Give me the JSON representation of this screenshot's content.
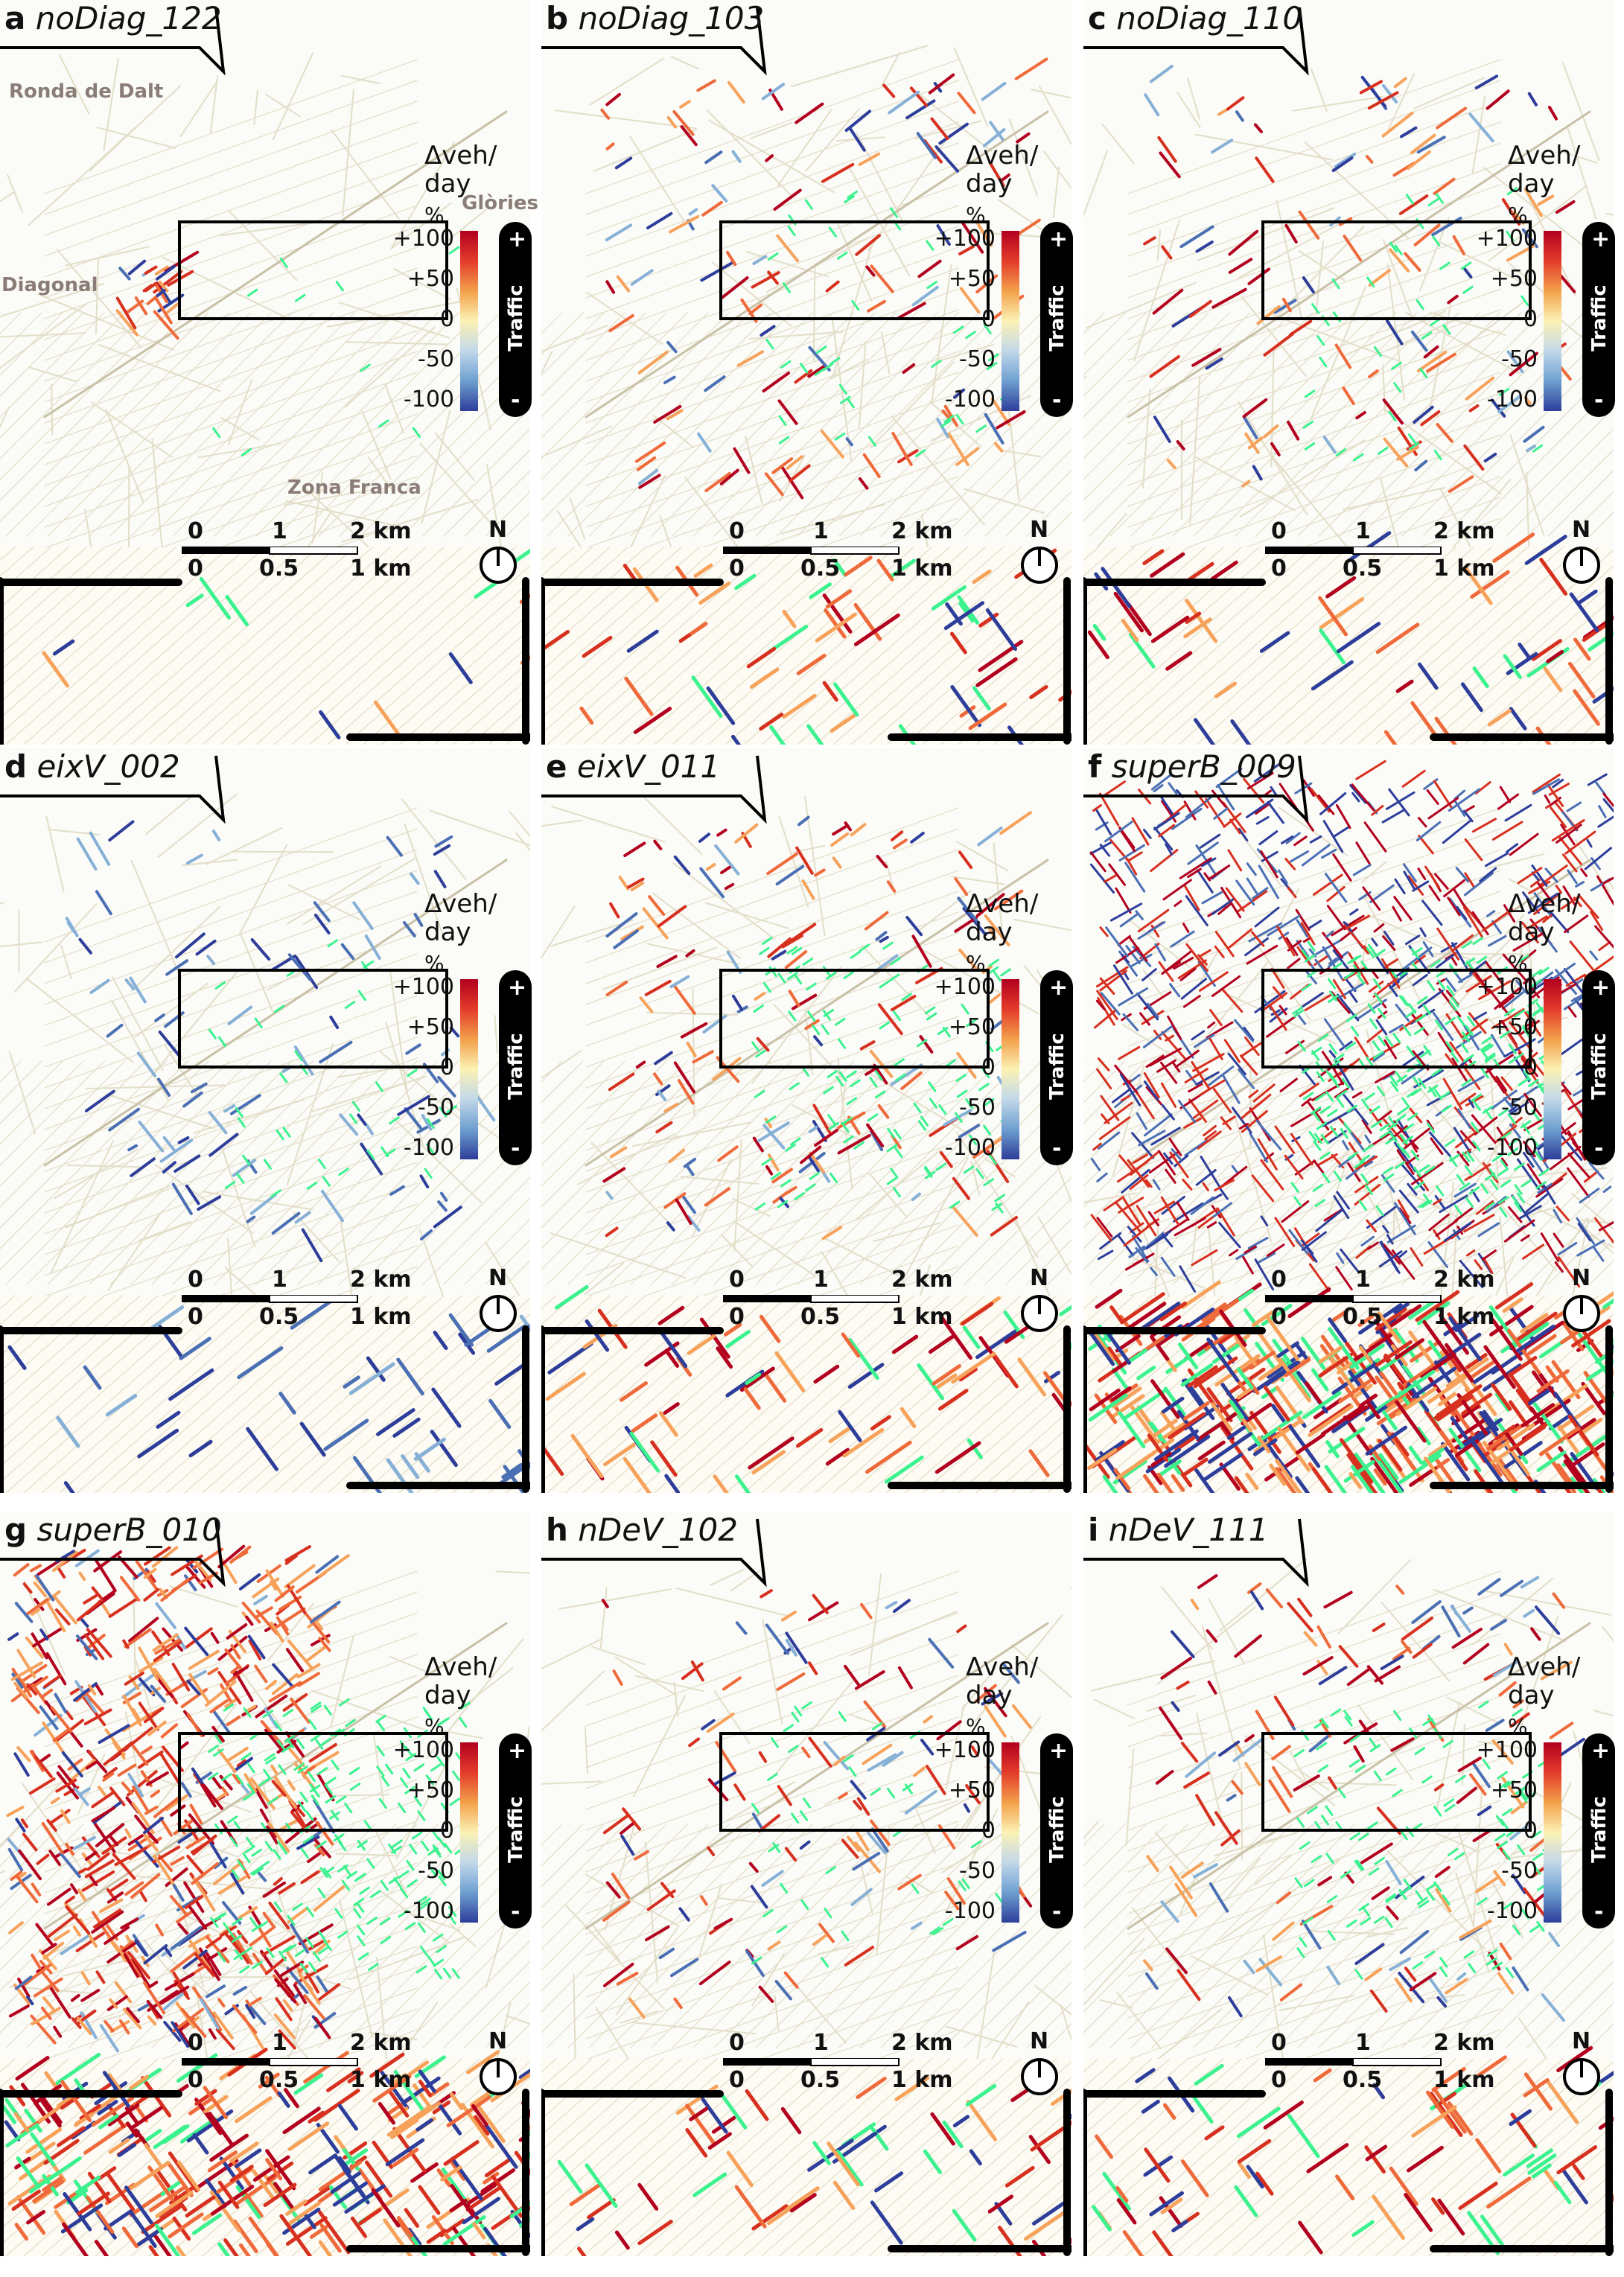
{
  "panels": [
    {
      "letter": "a",
      "name": "noDiag_122",
      "mode": "small"
    },
    {
      "letter": "b",
      "name": "noDiag_103",
      "mode": "medium"
    },
    {
      "letter": "c",
      "name": "noDiag_110",
      "mode": "medium"
    },
    {
      "letter": "d",
      "name": "eixV_002",
      "mode": "blue"
    },
    {
      "letter": "e",
      "name": "eixV_011",
      "mode": "mixed"
    },
    {
      "letter": "f",
      "name": "superB_009",
      "mode": "dense"
    },
    {
      "letter": "g",
      "name": "superB_010",
      "mode": "red"
    },
    {
      "letter": "h",
      "name": "nDeV_102",
      "mode": "medium"
    },
    {
      "letter": "i",
      "name": "nDeV_111",
      "mode": "mixed"
    }
  ],
  "legend": {
    "title_line1": "Δveh/",
    "title_line2": "day",
    "unit": "%",
    "ticks": [
      "+100",
      "+50",
      "0",
      "-50",
      "-100"
    ],
    "pill_label": "Traffic",
    "pill_plus": "+",
    "pill_minus": "-"
  },
  "scale": {
    "top_labels": [
      "0",
      "1",
      "2 km"
    ],
    "bottom_labels": [
      "0",
      "0.5",
      "1 km"
    ]
  },
  "north_label": "N",
  "annotations": {
    "ronda": "Ronda de Dalt",
    "glories": "Glòries",
    "diagonal": "Diagonal",
    "zona": "Zona Franca"
  },
  "colors": {
    "background": "#fbfbf8",
    "road": "#e3dec8",
    "increase": "#b2001e",
    "decrease": "#2d3e9a",
    "superblock": "#3cf28f"
  }
}
